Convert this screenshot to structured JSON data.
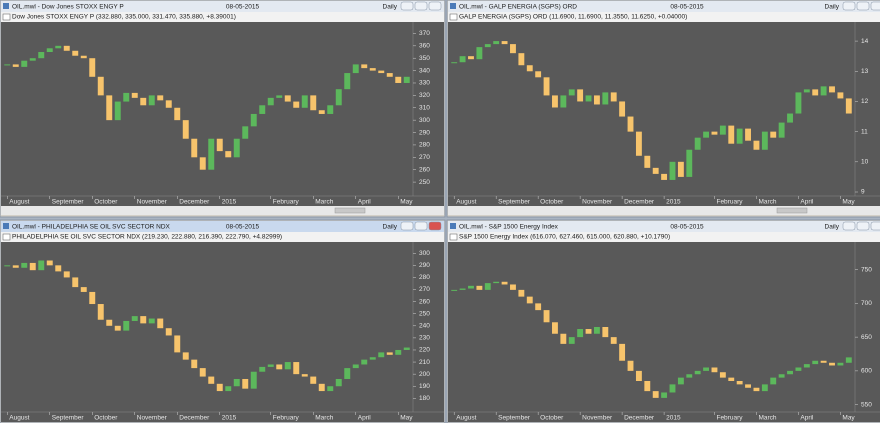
{
  "chart_data": [
    {
      "type": "candlestick",
      "window_title": "OIL.mwl - Dow Jones STOXX ENGY P",
      "date": "08-05-2015",
      "period": "Daily",
      "info": "Dow Jones STOXX ENGY P (332.880, 335.000, 331.470, 335.880, +8.39001)",
      "categories": [
        "August",
        null,
        null,
        null,
        null,
        "September",
        null,
        null,
        null,
        null,
        "October",
        null,
        null,
        null,
        null,
        "November",
        null,
        null,
        null,
        null,
        "December",
        null,
        null,
        null,
        null,
        "2015",
        null,
        null,
        null,
        null,
        null,
        "February",
        null,
        null,
        null,
        null,
        "March",
        null,
        null,
        null,
        null,
        "April",
        null,
        null,
        null,
        null,
        "May",
        null
      ],
      "values": [
        345,
        343,
        348,
        350,
        355,
        358,
        360,
        356,
        352,
        350,
        335,
        320,
        300,
        315,
        322,
        318,
        312,
        320,
        316,
        310,
        300,
        285,
        270,
        260,
        285,
        275,
        270,
        285,
        295,
        305,
        312,
        318,
        320,
        315,
        310,
        320,
        308,
        305,
        312,
        325,
        338,
        345,
        342,
        340,
        338,
        335,
        330,
        335
      ],
      "up_color": "#5cb85c",
      "down_color": "#f7c46c",
      "ylim": [
        242,
        376
      ],
      "yticks": [
        250,
        260,
        270,
        280,
        290,
        300,
        310,
        320,
        330,
        340,
        350,
        360,
        370
      ]
    },
    {
      "type": "candlestick",
      "window_title": "OIL.mwl - GALP ENERGIA (SGPS) ORD",
      "date": "08-05-2015",
      "period": "Daily",
      "info": "GALP ENERGIA (SGPS) ORD (11.6900, 11.6900, 11.3550, 11.6250, +0.04000)",
      "categories": [
        "August",
        null,
        null,
        null,
        null,
        "September",
        null,
        null,
        null,
        null,
        "October",
        null,
        null,
        null,
        null,
        "November",
        null,
        null,
        null,
        null,
        "December",
        null,
        null,
        null,
        null,
        "2015",
        null,
        null,
        null,
        null,
        null,
        "February",
        null,
        null,
        null,
        null,
        "March",
        null,
        null,
        null,
        null,
        "April",
        null,
        null,
        null,
        null,
        "May",
        null
      ],
      "values": [
        13.3,
        13.5,
        13.4,
        13.8,
        13.9,
        14.0,
        13.9,
        13.6,
        13.2,
        13.0,
        12.8,
        12.2,
        11.8,
        12.2,
        12.4,
        12.0,
        12.2,
        11.9,
        12.3,
        12.0,
        11.5,
        11.0,
        10.2,
        9.8,
        9.6,
        9.4,
        10.0,
        9.5,
        10.4,
        10.8,
        11.0,
        10.9,
        11.2,
        10.6,
        11.1,
        10.7,
        10.4,
        11.0,
        10.8,
        11.3,
        11.6,
        12.3,
        12.4,
        12.2,
        12.5,
        12.3,
        12.1,
        11.6
      ],
      "up_color": "#5cb85c",
      "down_color": "#f7c46c",
      "ylim": [
        9,
        14.5
      ],
      "yticks": [
        9,
        10,
        11,
        12,
        13,
        14
      ]
    },
    {
      "type": "candlestick",
      "window_title": "OIL.mwl - PHILADELPHIA SE OIL SVC SECTOR NDX",
      "date": "08-05-2015",
      "period": "Daily",
      "info": "PHILADELPHIA SE OIL SVC SECTOR NDX (219.230, 222.880, 216.390, 222.790, +4.82999)",
      "categories": [
        "August",
        null,
        null,
        null,
        null,
        "September",
        null,
        null,
        null,
        null,
        "October",
        null,
        null,
        null,
        null,
        "November",
        null,
        null,
        null,
        null,
        "December",
        null,
        null,
        null,
        null,
        "2015",
        null,
        null,
        null,
        null,
        null,
        "February",
        null,
        null,
        null,
        null,
        "March",
        null,
        null,
        null,
        null,
        "April",
        null,
        null,
        null,
        null,
        "May",
        null
      ],
      "values": [
        290,
        288,
        292,
        286,
        294,
        290,
        285,
        280,
        272,
        268,
        258,
        245,
        240,
        236,
        244,
        248,
        242,
        246,
        238,
        232,
        218,
        212,
        205,
        198,
        192,
        186,
        190,
        196,
        188,
        202,
        206,
        208,
        204,
        210,
        200,
        198,
        192,
        186,
        190,
        196,
        205,
        208,
        212,
        214,
        218,
        216,
        220,
        222
      ],
      "up_color": "#5cb85c",
      "down_color": "#f7c46c",
      "ylim": [
        172,
        306
      ],
      "yticks": [
        180,
        190,
        200,
        210,
        220,
        230,
        240,
        250,
        260,
        270,
        280,
        290,
        300
      ]
    },
    {
      "type": "candlestick",
      "window_title": "OIL.mwl - S&P 1500 Energy Index",
      "date": "08-05-2015",
      "period": "Daily",
      "info": "S&P 1500 Energy Index (616.070, 627.460, 615.000, 620.880, +10.1790)",
      "categories": [
        "August",
        null,
        null,
        null,
        null,
        "September",
        null,
        null,
        null,
        null,
        "October",
        null,
        null,
        null,
        null,
        "November",
        null,
        null,
        null,
        null,
        "December",
        null,
        null,
        null,
        null,
        "2015",
        null,
        null,
        null,
        null,
        null,
        "February",
        null,
        null,
        null,
        null,
        "March",
        null,
        null,
        null,
        null,
        "April",
        null,
        null,
        null,
        null,
        "May",
        null
      ],
      "values": [
        720,
        722,
        726,
        720,
        730,
        732,
        728,
        720,
        710,
        700,
        690,
        672,
        655,
        640,
        650,
        662,
        655,
        665,
        650,
        640,
        615,
        600,
        585,
        570,
        560,
        568,
        580,
        590,
        595,
        600,
        605,
        598,
        590,
        585,
        580,
        575,
        570,
        580,
        590,
        595,
        600,
        605,
        610,
        615,
        612,
        608,
        612,
        620
      ],
      "up_color": "#5cb85c",
      "down_color": "#f7c46c",
      "ylim": [
        545,
        785
      ],
      "yticks": [
        550,
        600,
        650,
        700,
        750
      ]
    }
  ]
}
